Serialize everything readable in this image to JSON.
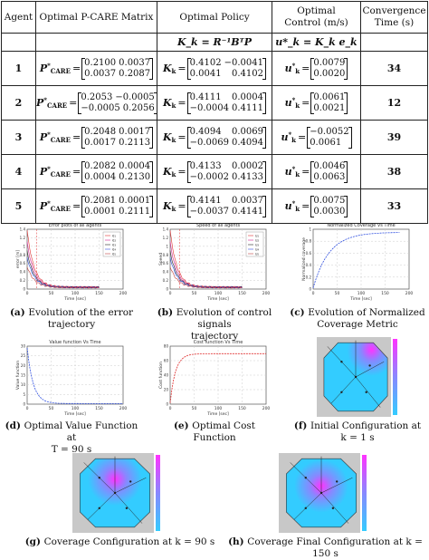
{
  "table": {
    "headers": {
      "agent": "Agent",
      "matrix": "Optimal P-CARE Matrix",
      "policy": "Optimal Policy",
      "control_line1": "Optimal",
      "control_line2": "Control (m/s)",
      "conv_line1": "Convergence",
      "conv_line2": "Time (s)"
    },
    "subheaders": {
      "policy": "K_k = R⁻¹BᵀP",
      "control": "u*_k = K_k e_k"
    },
    "p_label": "P",
    "p_sup": "*",
    "p_sub": "CARE",
    "k_label": "K",
    "k_sub": "k",
    "u_label": "u",
    "u_sup": "*",
    "u_sub": "k",
    "rows": [
      {
        "agent": "1",
        "p": [
          [
            "0.2100",
            "0.0037"
          ],
          [
            "0.0037",
            "0.2087"
          ]
        ],
        "k": [
          [
            "0.4102",
            "−0.0041"
          ],
          [
            "0.0041",
            "0.4102"
          ]
        ],
        "u": [
          "0.0079",
          "0.0020"
        ],
        "time": "34"
      },
      {
        "agent": "2",
        "p": [
          [
            "0.2053",
            "−0.0005"
          ],
          [
            "−0.0005",
            "0.2056"
          ]
        ],
        "k": [
          [
            "0.4111",
            "0.0004"
          ],
          [
            "−0.0004",
            "0.4111"
          ]
        ],
        "u": [
          "0.0061",
          "0.0021"
        ],
        "time": "12"
      },
      {
        "agent": "3",
        "p": [
          [
            "0.2048",
            "0.0017"
          ],
          [
            "0.0017",
            "0.2113"
          ]
        ],
        "k": [
          [
            "0.4094",
            "0.0069"
          ],
          [
            "−0.0069",
            "0.4094"
          ]
        ],
        "u": [
          "−0.0052",
          "0.0061"
        ],
        "time": "39"
      },
      {
        "agent": "4",
        "p": [
          [
            "0.2082",
            "0.0004"
          ],
          [
            "0.0004",
            "0.2130"
          ]
        ],
        "k": [
          [
            "0.4133",
            "0.0002"
          ],
          [
            "−0.0002",
            "0.4133"
          ]
        ],
        "u": [
          "0.0046",
          "0.0063"
        ],
        "time": "38"
      },
      {
        "agent": "5",
        "p": [
          [
            "0.2081",
            "0.0001"
          ],
          [
            "0.0001",
            "0.2111"
          ]
        ],
        "k": [
          [
            "0.4141",
            "0.0037"
          ],
          [
            "−0.0037",
            "0.4141"
          ]
        ],
        "u": [
          "0.0075",
          "0.0030"
        ],
        "time": "33"
      }
    ]
  },
  "figures": [
    {
      "tag": "(a)",
      "caption_l1": "Evolution of the error",
      "caption_l2": "trajectory",
      "title": "Error plots of all agents",
      "xlabel": "Time [sec]",
      "ylabel": "error [m]",
      "legend": [
        "e₁",
        "e₂",
        "e₃",
        "e₄",
        "e₅"
      ],
      "xticks": [
        "0",
        "50",
        "100",
        "150",
        "200"
      ],
      "yticks": [
        "0",
        "0.2",
        "0.4",
        "0.6",
        "0.8",
        "1",
        "1.2",
        "1.4"
      ]
    },
    {
      "tag": "(b)",
      "caption_l1": "Evolution of control signals",
      "caption_l2": "trajectory",
      "title": "Speed of all agents",
      "xlabel": "Time [sec]",
      "ylabel": "Speed",
      "legend": [
        "u₁",
        "u₂",
        "u₃",
        "u₄",
        "u₅"
      ],
      "xticks": [
        "0",
        "50",
        "100",
        "150",
        "200"
      ],
      "yticks": [
        "0",
        "0.2",
        "0.4",
        "0.6",
        "0.8",
        "1",
        "1.2",
        "1.4"
      ]
    },
    {
      "tag": "(c)",
      "caption_l1": "Evolution of Normalized",
      "caption_l2": "Coverage Metric",
      "title": "Normalized Coverage Vs Time",
      "xlabel": "Time [sec]",
      "ylabel": "Normalized coverage",
      "xticks": [
        "0",
        "50",
        "100",
        "150",
        "200"
      ],
      "yticks": [
        "0",
        "0.2",
        "0.4",
        "0.6",
        "0.8",
        "1"
      ]
    },
    {
      "tag": "(d)",
      "caption_l1": "Optimal Value Function at",
      "caption_l2": "T = 90 s",
      "title": "Value function Vs Time",
      "xlabel": "Time [sec]",
      "ylabel": "Value function",
      "xticks": [
        "0",
        "50",
        "100",
        "150",
        "200"
      ],
      "yticks": [
        "0",
        "5",
        "10",
        "15",
        "20",
        "25",
        "30"
      ]
    },
    {
      "tag": "(e)",
      "caption_l1": "Optimal Cost",
      "caption_l2": "Function",
      "title": "Cost function Vs Time",
      "xlabel": "Time [sec]",
      "ylabel": "Cost function",
      "xticks": [
        "0",
        "50",
        "100",
        "150",
        "200"
      ],
      "yticks": [
        "0",
        "20",
        "40",
        "60",
        "80"
      ]
    },
    {
      "tag": "(f)",
      "caption_l1": "Initial Configuration at",
      "caption_l2": "k = 1 s"
    },
    {
      "tag": "(g)",
      "caption_l1": "Coverage Configuration at k = 90 s"
    },
    {
      "tag": "(h)",
      "caption_l1": "Coverage Final Configuration at k = 150 s"
    }
  ],
  "colors": {
    "curve_red": "#e03030",
    "curve_magenta": "#d02090",
    "curve_blue": "#3050e0",
    "grid": "#cccccc",
    "region": "#33ccff",
    "hot": "#ff33ff"
  }
}
